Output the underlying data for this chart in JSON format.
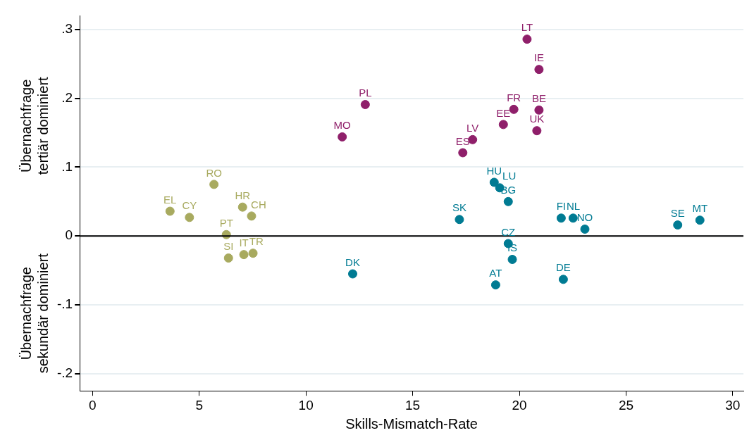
{
  "chart_data": {
    "type": "scatter",
    "xlabel": "Skills-Mismatch-Rate",
    "ylabel": "Übernachfrage\ntertiär dominiert",
    "xlim": [
      -0.6,
      30.5
    ],
    "xticks": [
      0,
      5,
      10,
      15,
      20,
      25,
      30
    ],
    "ylim": [
      -0.225,
      0.32
    ],
    "yticks": [
      {
        "value": 0.3,
        "label": ".3"
      },
      {
        "value": 0.2,
        "label": ".2"
      },
      {
        "value": 0.1,
        "label": ".1"
      },
      0,
      {
        "value": -0.1,
        "label": "-.1"
      },
      {
        "value": -0.2,
        "label": "-.2"
      }
    ],
    "grid": "y",
    "legend": false,
    "marker": "circle",
    "ref_lines": [
      {
        "axis": "y",
        "value": 0,
        "color": "#000000"
      }
    ],
    "series": [
      {
        "color": "#8f1f6a",
        "x": [
          20.36,
          20.92,
          12.78,
          19.74,
          20.92,
          19.25,
          20.82,
          11.7,
          17.81,
          17.35
        ],
        "values": [
          0.286,
          0.242,
          0.191,
          0.184,
          0.183,
          0.162,
          0.153,
          0.144,
          0.14,
          0.121
        ]
      },
      {
        "color": "#a8aa5f",
        "x": [
          5.69,
          3.63,
          7.03,
          4.54,
          7.45,
          6.27,
          6.37,
          7.09,
          7.52
        ],
        "values": [
          0.075,
          0.036,
          0.042,
          0.027,
          0.029,
          0.002,
          -0.032,
          -0.027,
          -0.025
        ]
      },
      {
        "color": "#007b93",
        "x": [
          18.82,
          19.08,
          19.48,
          17.19,
          21.96,
          22.52,
          23.07,
          27.42,
          28.46,
          19.48,
          19.67,
          12.19,
          18.89,
          22.06
        ],
        "values": [
          0.078,
          0.07,
          0.05,
          0.024,
          0.026,
          0.026,
          0.01,
          0.016,
          0.023,
          -0.011,
          -0.034,
          -0.055,
          -0.071,
          -0.063
        ]
      }
    ],
    "annotations": [
      "Übernachfrage\nsekundär dominiert",
      {
        "text": "LT",
        "x": 20.36,
        "y": 0.286
      },
      {
        "text": "IE",
        "x": 20.92,
        "y": 0.242
      },
      {
        "text": "PL",
        "x": 12.78,
        "y": 0.191
      },
      {
        "text": "FR",
        "x": 19.74,
        "y": 0.184
      },
      {
        "text": "BE",
        "x": 20.92,
        "y": 0.183
      },
      {
        "text": "EE",
        "x": 19.25,
        "y": 0.162
      },
      {
        "text": "UK",
        "x": 20.82,
        "y": 0.153
      },
      {
        "text": "MO",
        "x": 11.7,
        "y": 0.144
      },
      {
        "text": "LV",
        "x": 17.81,
        "y": 0.14
      },
      {
        "text": "ES",
        "x": 17.35,
        "y": 0.121
      },
      {
        "text": "RO",
        "x": 5.69,
        "y": 0.075
      },
      {
        "text": "EL",
        "x": 3.63,
        "y": 0.036
      },
      {
        "text": "HR",
        "x": 7.03,
        "y": 0.042
      },
      {
        "text": "CY",
        "x": 4.54,
        "y": 0.027
      },
      {
        "text": "CH",
        "x": 7.45,
        "y": 0.029
      },
      {
        "text": "PT",
        "x": 6.27,
        "y": 0.002
      },
      {
        "text": "SI",
        "x": 6.37,
        "y": -0.032
      },
      {
        "text": "IT",
        "x": 7.09,
        "y": -0.027
      },
      {
        "text": "TR",
        "x": 7.52,
        "y": -0.025
      },
      {
        "text": "HU",
        "x": 18.82,
        "y": 0.078
      },
      {
        "text": "LU",
        "x": 19.08,
        "y": 0.07
      },
      {
        "text": "BG",
        "x": 19.48,
        "y": 0.05
      },
      {
        "text": "SK",
        "x": 17.19,
        "y": 0.024
      },
      {
        "text": "FI",
        "x": 21.96,
        "y": 0.026
      },
      {
        "text": "NL",
        "x": 22.52,
        "y": 0.026
      },
      {
        "text": "NO",
        "x": 23.07,
        "y": 0.01
      },
      {
        "text": "SE",
        "x": 27.42,
        "y": 0.016
      },
      {
        "text": "MT",
        "x": 28.46,
        "y": 0.023
      },
      {
        "text": "CZ",
        "x": 19.48,
        "y": -0.011
      },
      {
        "text": "IS",
        "x": 19.67,
        "y": -0.034
      },
      {
        "text": "DK",
        "x": 12.19,
        "y": -0.055
      },
      {
        "text": "AT",
        "x": 18.89,
        "y": -0.071
      },
      {
        "text": "DE",
        "x": 22.06,
        "y": -0.063
      }
    ]
  }
}
